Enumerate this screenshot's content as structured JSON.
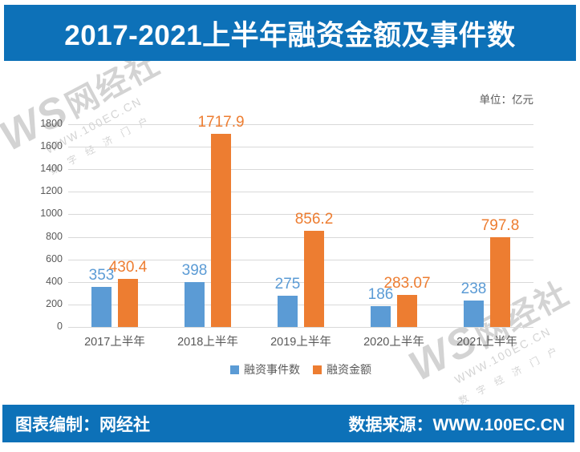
{
  "header": {
    "title": "2017-2021上半年融资金额及事件数"
  },
  "chart": {
    "unit_label": "单位：亿元"
  },
  "chart_data": {
    "type": "bar",
    "title": "2017-2021上半年融资金额及事件数",
    "categories": [
      "2017上半年",
      "2018上半年",
      "2019上半年",
      "2020上半年",
      "2021上半年"
    ],
    "series": [
      {
        "name": "融资事件数",
        "color": "#5B9BD5",
        "values": [
          353,
          398,
          275,
          186,
          238
        ],
        "labels": [
          "353",
          "398",
          "275",
          "186",
          "238"
        ]
      },
      {
        "name": "融资金额",
        "color": "#ED7D31",
        "values": [
          430.4,
          1717.9,
          856.2,
          283.07,
          797.8
        ],
        "labels": [
          "430.4",
          "1717.9",
          "856.2",
          "283.07",
          "797.8"
        ]
      }
    ],
    "unit": "亿元",
    "ylim": [
      0,
      1800
    ],
    "yticks": [
      0,
      200,
      400,
      600,
      800,
      1000,
      1200,
      1400,
      1600,
      1800
    ],
    "grid": true,
    "legend_position": "bottom"
  },
  "watermark": {
    "logo": "WS",
    "brand": "网经社",
    "url": "WWW.100EC.CN",
    "tagline": "数字经济门户"
  },
  "footer": {
    "left": "图表编制：网经社",
    "right": "数据来源：WWW.100EC.CN"
  },
  "colors": {
    "banner": "#0D71B8",
    "bar_events": "#5B9BD5",
    "bar_amount": "#ED7D31",
    "grid": "#D9D9D9",
    "axis_text": "#595959",
    "watermark": "#C9C9C9"
  }
}
